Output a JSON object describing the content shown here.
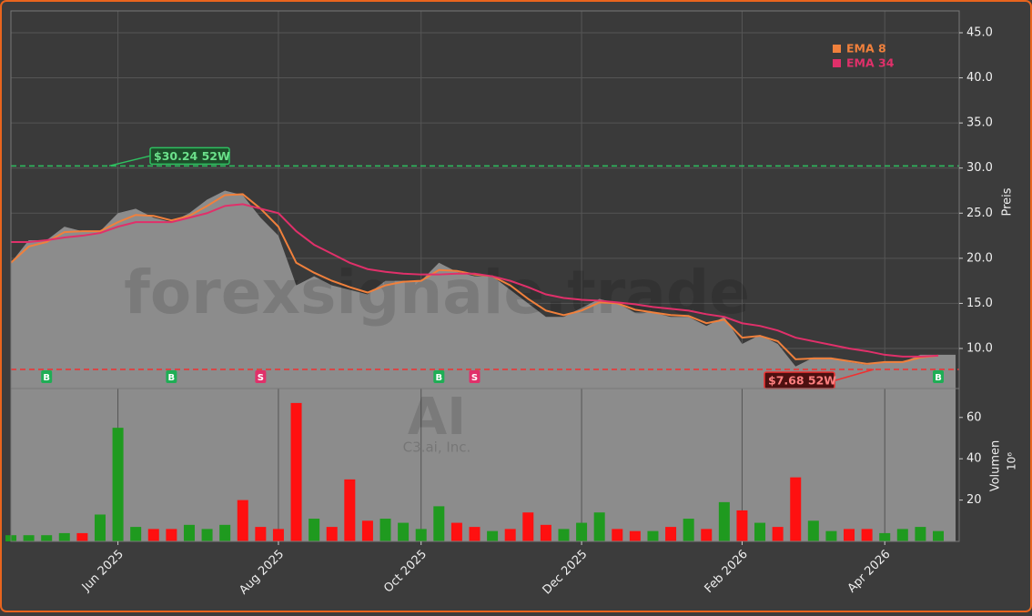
{
  "chart_data": {
    "type": "line",
    "watermark": "forexsignale.trade",
    "ticker": "AI",
    "company": "C3.ai, Inc.",
    "ylabel": "Preis",
    "y2label": "Volumen",
    "y2_exponent": "10⁶",
    "categories": [
      null,
      null,
      null,
      null,
      null,
      null,
      "Jun 2025",
      null,
      null,
      null,
      null,
      null,
      null,
      null,
      null,
      "Aug 2025",
      null,
      null,
      null,
      null,
      null,
      null,
      null,
      "Oct 2025",
      null,
      null,
      null,
      null,
      null,
      null,
      null,
      null,
      "Dec 2025",
      null,
      null,
      null,
      null,
      null,
      null,
      null,
      null,
      "Feb 2026",
      null,
      null,
      null,
      null,
      null,
      null,
      null,
      "Apr 2026",
      null,
      null,
      null
    ],
    "signals": [
      null,
      null,
      "B",
      null,
      null,
      null,
      null,
      null,
      null,
      "B",
      null,
      null,
      null,
      null,
      "S",
      null,
      null,
      null,
      null,
      null,
      null,
      null,
      null,
      null,
      "B",
      null,
      "S",
      null,
      null,
      null,
      null,
      null,
      null,
      null,
      null,
      null,
      null,
      null,
      null,
      null,
      null,
      null,
      null,
      null,
      null,
      null,
      null,
      null,
      null,
      null,
      null,
      null,
      "B"
    ],
    "signal_colors": {
      "B": "#1fae55",
      "S": "#e0306a"
    },
    "close": [
      19.5,
      22,
      22,
      23.5,
      23,
      23,
      25,
      25.5,
      24.5,
      24,
      25,
      26.5,
      27.5,
      27,
      24.5,
      22.5,
      17,
      18,
      17,
      16.5,
      16,
      17.5,
      17.5,
      17.5,
      19.5,
      18.5,
      18,
      18,
      16.5,
      15,
      13.5,
      13.5,
      14.5,
      15.5,
      15,
      14,
      14,
      13.5,
      13.5,
      12.5,
      13.5,
      10.5,
      11.5,
      10.5,
      8,
      9,
      9,
      8.5,
      8.2,
      8.5,
      8.5,
      9.3,
      9.3
    ],
    "area_color": "#8c8c8c",
    "series": [
      {
        "name": "EMA 8",
        "color": "#f0803c",
        "values": [
          19.5,
          21.3,
          21.8,
          22.9,
          23,
          23,
          24,
          24.8,
          24.7,
          24.2,
          24.7,
          25.8,
          27,
          27.1,
          25.5,
          23.5,
          19.5,
          18.4,
          17.5,
          16.8,
          16.2,
          17,
          17.4,
          17.5,
          18.7,
          18.6,
          18.2,
          18,
          17,
          15.5,
          14.2,
          13.7,
          14.2,
          15.1,
          15,
          14.3,
          14,
          13.7,
          13.6,
          12.8,
          13.2,
          11.2,
          11.4,
          10.8,
          8.8,
          8.9,
          8.9,
          8.6,
          8.3,
          8.5,
          8.5,
          9,
          9.2
        ]
      },
      {
        "name": "EMA 34",
        "color": "#e0306a",
        "values": [
          21.8,
          21.8,
          22,
          22.3,
          22.5,
          22.8,
          23.5,
          24,
          24,
          24,
          24.5,
          25,
          25.8,
          26,
          25.5,
          25,
          23,
          21.5,
          20.5,
          19.5,
          18.8,
          18.5,
          18.3,
          18.2,
          18.2,
          18.3,
          18.3,
          18,
          17.5,
          16.8,
          16,
          15.6,
          15.4,
          15.3,
          15.1,
          14.9,
          14.6,
          14.4,
          14.2,
          13.8,
          13.5,
          12.8,
          12.5,
          12,
          11.2,
          10.8,
          10.4,
          10,
          9.7,
          9.3,
          9.1,
          9.1,
          9.2
        ]
      }
    ],
    "volume": {
      "name": "Volumen",
      "up_color": "#1f9a1f",
      "down_color": "#ff1010",
      "values": [
        3,
        3,
        3,
        4,
        4,
        13,
        55,
        7,
        6,
        6,
        8,
        6,
        8,
        20,
        7,
        6,
        67,
        11,
        7,
        30,
        10,
        11,
        9,
        6,
        17,
        9,
        7,
        5,
        6,
        14,
        8,
        6,
        9,
        14,
        6,
        5,
        5,
        7,
        11,
        6,
        19,
        15,
        9,
        7,
        31,
        10,
        5,
        6,
        6,
        4,
        6,
        7,
        5
      ]
    },
    "levels": [
      {
        "value": 30.24,
        "label": "$30.24 52W",
        "color": "#2ec060"
      },
      {
        "value": 7.68,
        "label": "$7.68 52W",
        "color": "#f03030"
      }
    ],
    "ylim": [
      5.56,
      47.42
    ],
    "yticks": [
      {
        "value": 10,
        "label": "10.0"
      },
      {
        "value": 15,
        "label": "15.0"
      },
      {
        "value": 20,
        "label": "20.0"
      },
      {
        "value": 25,
        "label": "25.0"
      },
      {
        "value": 30,
        "label": "30.0"
      },
      {
        "value": 35,
        "label": "35.0"
      },
      {
        "value": 40,
        "label": "40.0"
      },
      {
        "value": 45,
        "label": "45.0"
      }
    ],
    "y2lim": [
      0,
      74
    ],
    "y2ticks": [
      20,
      40,
      60
    ],
    "grid": true,
    "legend": "upper right"
  }
}
